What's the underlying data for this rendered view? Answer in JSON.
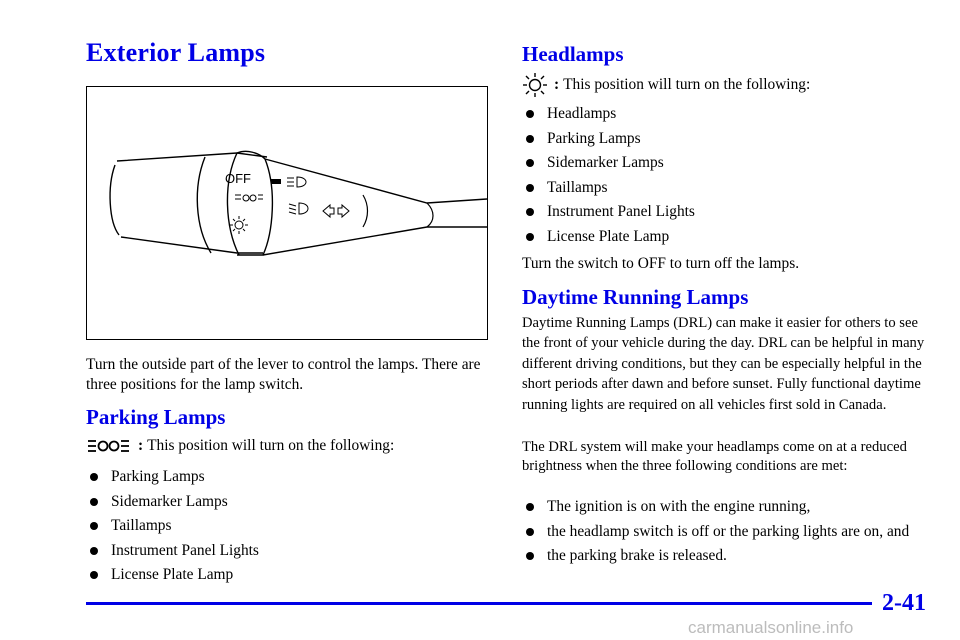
{
  "left": {
    "title": "Exterior Lamps",
    "figure": {
      "off_label": "OFF"
    },
    "intro": "Turn the outside part of the lever to control the lamps. There are three positions for the lamp switch.",
    "parking": {
      "heading": "Parking Lamps",
      "symbol_colon": ":",
      "lead": "This position will turn on the following:",
      "items": [
        "Parking Lamps",
        "Sidemarker Lamps",
        "Taillamps",
        "Instrument Panel Lights",
        "License Plate Lamp"
      ]
    }
  },
  "right": {
    "headlamps": {
      "heading": "Headlamps",
      "symbol_colon": ":",
      "lead": "This position will turn on the following:",
      "items": [
        "Headlamps",
        "Parking Lamps",
        "Sidemarker Lamps",
        "Taillamps",
        "Instrument Panel Lights",
        "License Plate Lamp"
      ],
      "after": "Turn the switch to OFF to turn off the lamps."
    },
    "drl": {
      "heading": "Daytime Running Lamps",
      "para1": "Daytime Running Lamps (DRL) can make it easier for others to see the front of your vehicle during the day. DRL can be helpful in many different driving conditions, but they can be especially helpful in the short periods after dawn and before sunset. Fully functional daytime running lights are required on all vehicles first sold in Canada.",
      "para2": "The DRL system will make your headlamps come on at a reduced brightness when the three following conditions are met:",
      "items": [
        "The ignition is on with the engine running,",
        "the headlamp switch is off or the parking lights are on, and",
        "the parking brake is released."
      ]
    }
  },
  "footer": {
    "page_number": "2-41",
    "watermark": "carmanualsonline.info"
  },
  "colors": {
    "heading": "#0000e6",
    "rule": "#0000e6"
  }
}
